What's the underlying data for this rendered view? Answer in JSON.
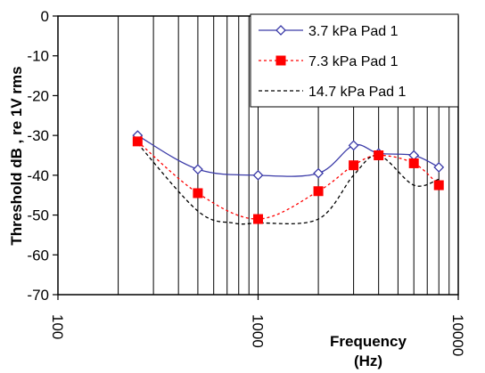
{
  "chart_data": {
    "type": "line",
    "title": "",
    "xlabel": "Frequency (Hz)",
    "xlabel_lines": [
      "Frequency",
      "(Hz)"
    ],
    "ylabel": "Threshold dB , re 1V rms",
    "x_scale": "log",
    "xlim": [
      100,
      10000
    ],
    "ylim": [
      -70,
      0
    ],
    "x_ticks": [
      "100",
      "1000",
      "10000"
    ],
    "y_ticks": [
      "0",
      "-10",
      "-20",
      "-30",
      "-40",
      "-50",
      "-60",
      "-70"
    ],
    "grid": "vertical minor lines",
    "legend_position": "top-right",
    "series": [
      {
        "name": "3.7 kPa Pad 1",
        "color": "#3a3aa8",
        "marker": "diamond",
        "line_style": "solid",
        "x": [
          250,
          500,
          1000,
          2000,
          3000,
          4000,
          6000,
          8000
        ],
        "y": [
          -30,
          -38.5,
          -40,
          -39.5,
          -32.5,
          -34.5,
          -35,
          -38
        ]
      },
      {
        "name": "7.3 kPa Pad 1",
        "color": "#ff0000",
        "marker": "square",
        "line_style": "dotted",
        "x": [
          250,
          500,
          1000,
          2000,
          3000,
          4000,
          6000,
          8000
        ],
        "y": [
          -31.5,
          -44.5,
          -51,
          -44,
          -37.5,
          -35,
          -37,
          -42.5
        ]
      },
      {
        "name": "14.7 kPa Pad 1",
        "color": "#000000",
        "marker": "none",
        "line_style": "dashed",
        "x": [
          250,
          500,
          750,
          1000,
          2000,
          3000,
          4000,
          6000,
          8000
        ],
        "y": [
          -32,
          -49,
          -52,
          -52,
          -51,
          -40,
          -35,
          -42.5,
          -41
        ]
      }
    ]
  }
}
